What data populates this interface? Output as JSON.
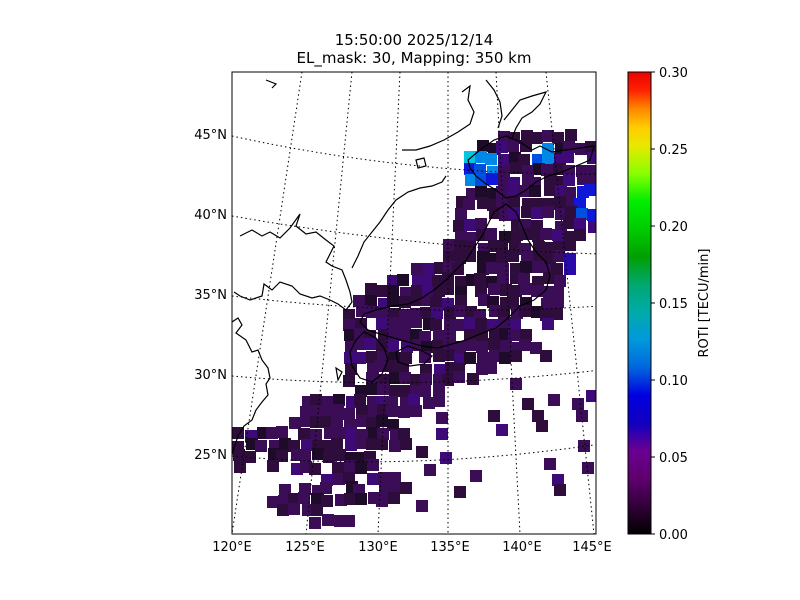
{
  "title": {
    "line1": "15:50:00 2025/12/14",
    "line2": "EL_mask: 30, Mapping: 350 km"
  },
  "map": {
    "lon_ticks": [
      "120°E",
      "125°E",
      "130°E",
      "135°E",
      "140°E",
      "145°E"
    ],
    "lat_ticks": [
      "25°N",
      "30°N",
      "35°N",
      "40°N",
      "45°N"
    ],
    "lon_range": [
      120,
      145
    ],
    "lat_range": [
      20,
      49
    ],
    "grid": "dotted graticule"
  },
  "colorbar": {
    "label": "ROTI [TECU/min]",
    "ticks": [
      "0.00",
      "0.05",
      "0.10",
      "0.15",
      "0.20",
      "0.25",
      "0.30"
    ],
    "range": [
      0,
      0.3
    ],
    "colormap": "nipy_spectral"
  },
  "chart_data": {
    "type": "heatmap",
    "x_unit": "degrees east longitude",
    "y_unit": "degrees north latitude",
    "value_unit": "TECU/min",
    "typical_value": 0.03,
    "elevated_regions": [
      {
        "region": "Hokkaido west coast",
        "value": 0.11
      },
      {
        "region": "Hokkaido east",
        "value": 0.09
      },
      {
        "region": "Off Sanriku",
        "value": 0.06
      }
    ]
  }
}
